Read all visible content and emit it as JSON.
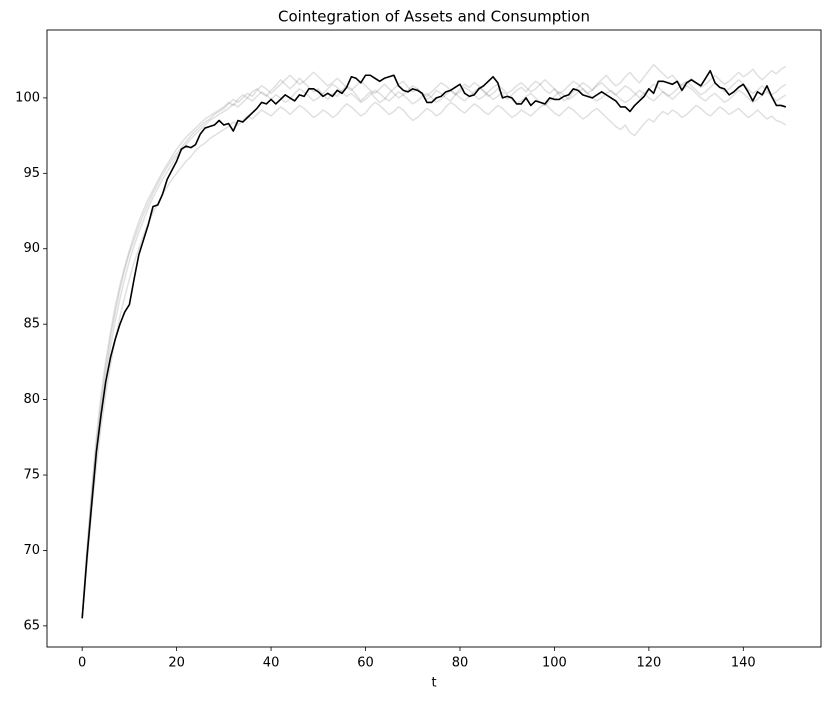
{
  "chart_data": {
    "type": "line",
    "title": "Cointegration of Assets and Consumption",
    "x_label": "t",
    "xlim": [
      -7.45,
      156.45
    ],
    "xticks": [
      0,
      20,
      40,
      60,
      80,
      100,
      120,
      140
    ],
    "ylim": [
      63.6,
      104.5
    ],
    "yticks": [
      65,
      70,
      75,
      80,
      85,
      90,
      95,
      100
    ],
    "grid": false,
    "x": [
      0,
      1,
      2,
      3,
      4,
      5,
      6,
      7,
      8,
      9,
      10,
      11,
      12,
      13,
      14,
      15,
      16,
      17,
      18,
      19,
      20,
      21,
      22,
      23,
      24,
      25,
      26,
      27,
      28,
      29,
      30,
      31,
      32,
      33,
      34,
      35,
      36,
      37,
      38,
      39,
      40,
      41,
      42,
      43,
      44,
      45,
      46,
      47,
      48,
      49,
      50,
      51,
      52,
      53,
      54,
      55,
      56,
      57,
      58,
      59,
      60,
      61,
      62,
      63,
      64,
      65,
      66,
      67,
      68,
      69,
      70,
      71,
      72,
      73,
      74,
      75,
      76,
      77,
      78,
      79,
      80,
      81,
      82,
      83,
      84,
      85,
      86,
      87,
      88,
      89,
      90,
      91,
      92,
      93,
      94,
      95,
      96,
      97,
      98,
      99,
      100,
      101,
      102,
      103,
      104,
      105,
      106,
      107,
      108,
      109,
      110,
      111,
      112,
      113,
      114,
      115,
      116,
      117,
      118,
      119,
      120,
      121,
      122,
      123,
      124,
      125,
      126,
      127,
      128,
      129,
      130,
      131,
      132,
      133,
      134,
      135,
      136,
      137,
      138,
      139,
      140,
      141,
      142,
      143,
      144,
      145,
      146,
      147,
      148,
      149
    ],
    "series": [
      {
        "color": "#000000",
        "alpha": 0.12,
        "values": [
          65.5,
          70.0,
          74.0,
          77.5,
          80.3,
          82.6,
          84.5,
          86.2,
          87.6,
          88.8,
          89.9,
          90.9,
          91.8,
          92.6,
          93.3,
          93.9,
          94.5,
          95.1,
          95.6,
          96.1,
          96.6,
          97.0,
          97.4,
          97.7,
          98.0,
          98.3,
          98.6,
          98.8,
          99.0,
          99.2,
          99.4,
          99.7,
          99.5,
          99.9,
          100.2,
          100.0,
          100.4,
          100.6,
          100.3,
          100.1,
          100.5,
          100.8,
          101.2,
          100.9,
          100.6,
          100.9,
          101.3,
          101.0,
          100.7,
          100.4,
          100.6,
          100.2,
          99.9,
          100.3,
          100.1,
          100.5,
          100.8,
          100.6,
          100.2,
          99.8,
          100.1,
          100.4,
          100.0,
          99.7,
          99.9,
          100.3,
          100.6,
          100.9,
          101.1,
          100.7,
          100.4,
          100.6,
          100.2,
          99.9,
          100.1,
          100.5,
          100.3,
          100.0,
          99.8,
          100.2,
          100.6,
          100.9,
          100.7,
          101.0,
          100.8,
          100.4,
          100.1,
          100.3,
          100.6,
          100.2,
          99.9,
          100.2,
          100.5,
          100.7,
          100.4,
          100.8,
          101.1,
          100.9,
          100.5,
          100.3,
          100.6,
          100.2,
          99.8,
          100.0,
          100.4,
          100.7,
          101.0,
          100.8,
          100.5,
          100.9,
          101.2,
          101.5,
          101.1,
          100.8,
          101.0,
          101.4,
          101.7,
          101.3,
          101.0,
          101.4,
          101.8,
          102.2,
          101.9,
          101.6,
          101.3,
          101.5,
          101.1,
          100.8,
          101.0,
          101.3,
          101.0,
          100.7,
          100.9,
          101.2,
          101.5,
          101.2,
          100.9,
          101.1,
          101.4,
          101.7,
          101.4,
          101.6,
          101.9,
          101.5,
          101.2,
          101.5,
          101.8,
          101.6,
          101.9,
          102.1
        ]
      },
      {
        "color": "#000000",
        "alpha": 0.12,
        "values": [
          65.5,
          69.0,
          72.6,
          75.6,
          78.2,
          80.4,
          82.3,
          84.0,
          85.5,
          86.8,
          88.0,
          89.1,
          90.0,
          90.9,
          91.7,
          92.4,
          93.0,
          93.6,
          94.1,
          94.6,
          95.0,
          95.4,
          95.8,
          96.1,
          96.5,
          96.8,
          97.0,
          97.3,
          97.5,
          97.7,
          97.9,
          98.1,
          98.4,
          98.2,
          98.5,
          98.8,
          98.6,
          98.9,
          99.2,
          99.0,
          98.8,
          99.1,
          99.4,
          99.2,
          98.9,
          99.2,
          99.5,
          99.3,
          99.0,
          98.7,
          98.9,
          99.2,
          99.0,
          98.7,
          98.9,
          99.3,
          99.6,
          99.4,
          99.1,
          98.8,
          99.0,
          99.4,
          99.7,
          99.5,
          99.2,
          98.9,
          99.1,
          99.4,
          99.2,
          98.8,
          98.5,
          98.7,
          99.0,
          99.3,
          99.1,
          98.8,
          99.0,
          99.4,
          99.7,
          99.5,
          99.2,
          99.0,
          99.3,
          99.6,
          99.4,
          99.1,
          98.9,
          99.2,
          99.5,
          99.3,
          99.0,
          98.7,
          98.9,
          99.2,
          99.0,
          98.8,
          99.1,
          99.4,
          99.6,
          99.3,
          99.0,
          98.8,
          99.1,
          99.4,
          99.2,
          98.9,
          98.6,
          98.8,
          99.1,
          99.3,
          99.0,
          98.7,
          98.4,
          98.1,
          97.9,
          98.2,
          97.7,
          97.5,
          97.9,
          98.3,
          98.6,
          98.4,
          98.8,
          99.1,
          98.9,
          99.2,
          99.0,
          98.7,
          98.9,
          99.2,
          99.5,
          99.3,
          99.0,
          98.8,
          99.1,
          99.4,
          99.2,
          98.9,
          99.1,
          99.3,
          99.0,
          98.7,
          98.9,
          99.2,
          98.9,
          98.6,
          98.8,
          98.5,
          98.4,
          98.2
        ]
      },
      {
        "color": "#000000",
        "alpha": 0.12,
        "values": [
          65.5,
          69.6,
          73.4,
          76.6,
          79.3,
          81.6,
          83.5,
          85.2,
          86.7,
          88.0,
          89.2,
          90.2,
          91.1,
          91.9,
          92.7,
          93.4,
          94.0,
          94.6,
          95.1,
          95.6,
          96.1,
          96.5,
          96.9,
          97.3,
          97.6,
          97.9,
          98.2,
          98.5,
          98.7,
          98.9,
          99.1,
          99.3,
          99.6,
          99.4,
          99.7,
          100.0,
          99.8,
          100.1,
          100.4,
          100.2,
          99.9,
          100.2,
          100.0,
          99.7,
          99.9,
          100.3,
          100.6,
          100.4,
          100.1,
          99.8,
          100.0,
          100.3,
          100.6,
          100.9,
          100.7,
          100.4,
          100.1,
          100.3,
          100.0,
          99.7,
          99.9,
          100.2,
          100.5,
          100.3,
          100.0,
          99.8,
          100.1,
          100.4,
          100.2,
          99.9,
          99.6,
          99.8,
          100.1,
          100.3,
          100.0,
          99.7,
          99.9,
          100.2,
          100.5,
          100.3,
          100.0,
          99.8,
          100.1,
          100.4,
          100.7,
          100.5,
          100.2,
          99.9,
          100.1,
          100.4,
          100.2,
          99.9,
          99.6,
          99.8,
          100.1,
          100.3,
          100.0,
          99.7,
          99.5,
          99.8,
          100.1,
          100.4,
          100.2,
          99.9,
          100.1,
          100.4,
          100.6,
          100.3,
          100.0,
          99.8,
          100.0,
          100.3,
          100.5,
          100.2,
          99.9,
          99.7,
          99.9,
          100.2,
          100.5,
          100.3,
          100.0,
          99.8,
          100.1,
          100.4,
          100.2,
          99.9,
          100.2,
          100.5,
          100.8,
          100.6,
          100.3,
          100.0,
          99.8,
          100.1,
          100.3,
          100.0,
          99.7,
          99.9,
          100.2,
          100.5,
          100.3,
          100.0,
          99.7,
          99.9,
          100.2,
          100.4,
          100.1,
          99.8,
          100.0,
          100.2
        ]
      },
      {
        "color": "#000000",
        "alpha": 0.12,
        "values": [
          65.5,
          69.8,
          73.7,
          77.0,
          79.8,
          82.1,
          84.1,
          85.8,
          87.3,
          88.6,
          89.7,
          90.6,
          91.5,
          92.3,
          93.0,
          93.7,
          94.3,
          94.9,
          95.4,
          95.9,
          96.3,
          96.7,
          97.1,
          97.5,
          97.8,
          98.1,
          98.4,
          98.6,
          98.9,
          99.1,
          99.3,
          99.6,
          99.9,
          99.7,
          100.0,
          100.3,
          100.1,
          100.5,
          100.8,
          100.6,
          100.3,
          100.6,
          100.9,
          101.2,
          101.5,
          101.2,
          100.9,
          101.1,
          101.4,
          101.7,
          101.4,
          101.1,
          100.8,
          101.0,
          101.3,
          101.0,
          100.7,
          100.5,
          100.8,
          101.1,
          100.8,
          100.5,
          100.3,
          100.6,
          100.9,
          100.6,
          100.3,
          100.0,
          100.2,
          100.5,
          100.8,
          100.6,
          100.3,
          100.1,
          100.4,
          100.7,
          101.0,
          100.8,
          100.5,
          100.2,
          100.4,
          100.7,
          100.5,
          100.2,
          99.9,
          100.1,
          100.4,
          100.7,
          100.9,
          100.6,
          100.3,
          100.5,
          100.8,
          101.0,
          100.7,
          100.4,
          100.6,
          100.9,
          101.2,
          100.9,
          100.6,
          100.3,
          100.5,
          100.8,
          101.1,
          100.9,
          100.6,
          100.3,
          100.5,
          100.8,
          101.0,
          100.7,
          100.4,
          100.2,
          100.5,
          100.8,
          100.6,
          100.3,
          100.0,
          100.3,
          100.6,
          100.9,
          100.7,
          100.4,
          100.1,
          100.3,
          100.6,
          100.9,
          101.1,
          100.8,
          100.5,
          100.2,
          100.4,
          100.7,
          101.0,
          100.7,
          100.4,
          100.6,
          100.9,
          101.2,
          100.9,
          100.6,
          100.3,
          100.5,
          100.8,
          100.5,
          100.2,
          100.4,
          100.7,
          100.9
        ]
      },
      {
        "color": "#000000",
        "alpha": 1,
        "values": [
          65.5,
          69.5,
          73.0,
          76.5,
          79.0,
          81.2,
          82.8,
          84.0,
          85.0,
          85.8,
          86.3,
          88.0,
          89.6,
          90.6,
          91.6,
          92.8,
          92.9,
          93.6,
          94.6,
          95.2,
          95.8,
          96.6,
          96.8,
          96.7,
          96.9,
          97.6,
          98.0,
          98.1,
          98.2,
          98.5,
          98.2,
          98.3,
          97.8,
          98.5,
          98.4,
          98.7,
          99.0,
          99.3,
          99.7,
          99.6,
          99.9,
          99.6,
          99.9,
          100.2,
          100.0,
          99.8,
          100.2,
          100.1,
          100.6,
          100.6,
          100.4,
          100.1,
          100.3,
          100.1,
          100.5,
          100.3,
          100.7,
          101.4,
          101.3,
          101.0,
          101.5,
          101.5,
          101.3,
          101.1,
          101.3,
          101.4,
          101.5,
          100.8,
          100.5,
          100.4,
          100.6,
          100.5,
          100.3,
          99.7,
          99.7,
          100.0,
          100.1,
          100.4,
          100.5,
          100.7,
          100.9,
          100.3,
          100.1,
          100.2,
          100.6,
          100.8,
          101.1,
          101.4,
          101.0,
          100.0,
          100.1,
          100.0,
          99.6,
          99.6,
          100.0,
          99.5,
          99.8,
          99.7,
          99.6,
          100.0,
          99.9,
          99.9,
          100.1,
          100.2,
          100.6,
          100.5,
          100.2,
          100.1,
          100.0,
          100.2,
          100.4,
          100.2,
          100.0,
          99.8,
          99.4,
          99.4,
          99.1,
          99.5,
          99.8,
          100.1,
          100.6,
          100.3,
          101.1,
          101.1,
          101.0,
          100.9,
          101.1,
          100.5,
          101.0,
          101.2,
          101.0,
          100.8,
          101.3,
          101.8,
          101.0,
          100.7,
          100.6,
          100.2,
          100.4,
          100.7,
          100.9,
          100.4,
          99.8,
          100.4,
          100.2,
          100.8,
          100.1,
          99.5,
          99.5,
          99.4
        ]
      }
    ]
  }
}
